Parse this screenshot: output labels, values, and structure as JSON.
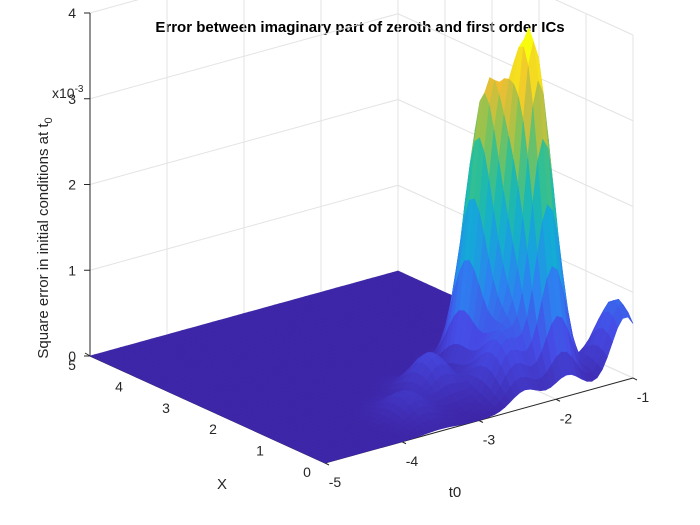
{
  "chart_data": {
    "type": "surface",
    "title": "Error between imaginary part of zeroth and first order ICs",
    "xlabel": "t0",
    "ylabel": "X",
    "zlabel": "Square error in initial conditions at t",
    "zlabel_sub": "0",
    "z_exponent": "x10",
    "z_exponent_power": "-3",
    "xlim": [
      -5,
      -1
    ],
    "ylim": [
      0,
      5
    ],
    "zlim": [
      0,
      0.004
    ],
    "x_ticks": [
      "-5",
      "-4",
      "-3",
      "-2",
      "-1"
    ],
    "y_ticks": [
      "0",
      "1",
      "2",
      "3",
      "4",
      "5"
    ],
    "z_ticks": [
      "0",
      "1",
      "2",
      "3",
      "4"
    ],
    "colormap": "parula",
    "grid": true,
    "peaks": [
      {
        "t0": -1.85,
        "X": 0.75,
        "value": 0.00385
      },
      {
        "t0": -2.1,
        "X": 1.35,
        "value": 0.0031
      },
      {
        "t0": -1.1,
        "X": 0.2,
        "value": 0.0009
      },
      {
        "t0": -2.4,
        "X": 0.5,
        "value": 0.0007
      },
      {
        "t0": -2.95,
        "X": 1.1,
        "value": 0.0005
      },
      {
        "t0": -3.5,
        "X": 0.7,
        "value": 0.00028
      }
    ]
  }
}
